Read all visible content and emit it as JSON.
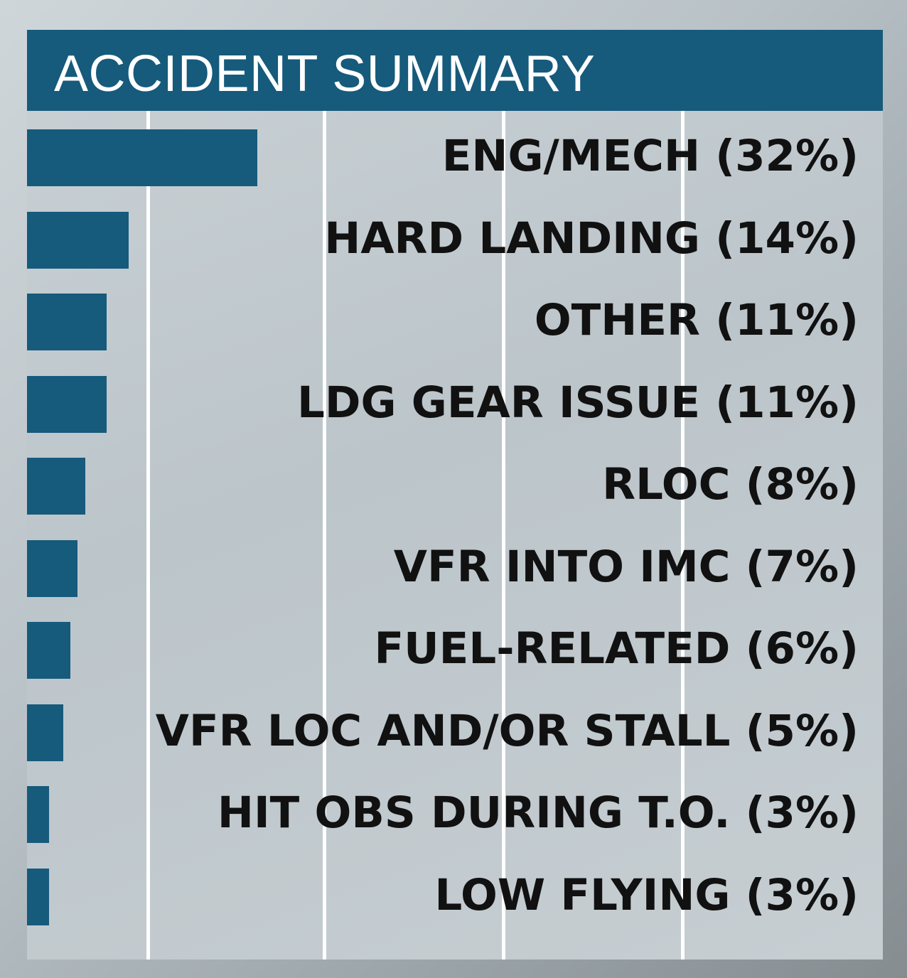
{
  "chart_data": {
    "type": "bar",
    "title": "ACCIDENT SUMMARY",
    "orientation": "horizontal",
    "categories": [
      "ENG/MECH",
      "HARD LANDING",
      "OTHER",
      "LDG GEAR ISSUE",
      "RLOC",
      "VFR INTO IMC",
      "FUEL-RELATED",
      "VFR LOC AND/OR STALL",
      "HIT OBS DURING T.O.",
      "LOW FLYING"
    ],
    "values": [
      32,
      14,
      11,
      11,
      8,
      7,
      6,
      5,
      3,
      3
    ],
    "labels": [
      "ENG/MECH (32%)",
      "HARD LANDING (14%)",
      "OTHER (11%)",
      "LDG GEAR ISSUE (11%)",
      "RLOC (8%)",
      "VFR INTO IMC (7%)",
      "FUEL-RELATED (6%)",
      "VFR LOC AND/OR STALL (5%)",
      "HIT OBS DURING T.O. (3%)",
      "LOW FLYING (3%)"
    ],
    "unit": "%",
    "grid": true,
    "bar_color": "#165a7c",
    "header_color": "#165a7c"
  }
}
